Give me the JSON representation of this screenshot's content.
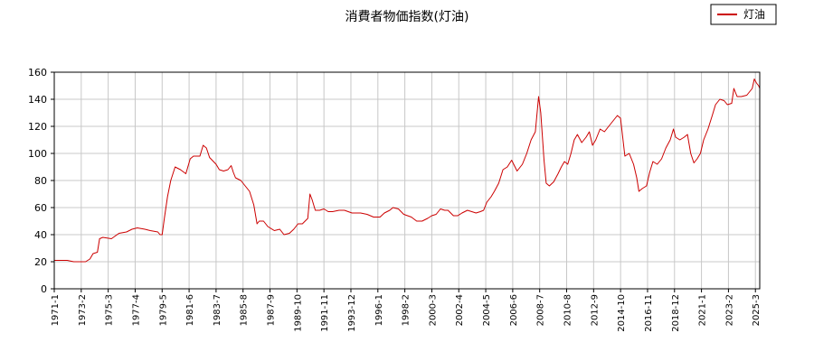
{
  "chart_data": {
    "type": "line",
    "title": "消費者物価指数(灯油)",
    "xlabel": "",
    "ylabel": "",
    "ylim": [
      0,
      160
    ],
    "yticks": [
      0,
      20,
      40,
      60,
      80,
      100,
      120,
      140,
      160
    ],
    "xlim": [
      "1971-01",
      "2025-07"
    ],
    "grid": true,
    "legend_position": "top-right",
    "x_tick_labels": [
      "1971-1",
      "1973-2",
      "1975-3",
      "1977-4",
      "1979-5",
      "1981-6",
      "1983-7",
      "1985-8",
      "1987-9",
      "1989-10",
      "1991-11",
      "1993-12",
      "1996-1",
      "1998-2",
      "2000-3",
      "2002-4",
      "2004-5",
      "2006-6",
      "2008-7",
      "2010-8",
      "2012-9",
      "2014-10",
      "2016-11",
      "2018-12",
      "2021-1",
      "2023-2",
      "2025-3"
    ],
    "series": [
      {
        "name": "灯油",
        "color": "#cc0000",
        "points": [
          [
            "1971-01",
            21
          ],
          [
            "1972-01",
            21
          ],
          [
            "1972-07",
            20
          ],
          [
            "1973-06",
            20
          ],
          [
            "1973-10",
            22
          ],
          [
            "1974-01",
            26
          ],
          [
            "1974-05",
            27
          ],
          [
            "1974-07",
            37
          ],
          [
            "1974-10",
            38
          ],
          [
            "1975-06",
            37
          ],
          [
            "1976-01",
            41
          ],
          [
            "1976-08",
            42
          ],
          [
            "1977-01",
            44
          ],
          [
            "1977-06",
            45
          ],
          [
            "1978-01",
            44
          ],
          [
            "1978-06",
            43
          ],
          [
            "1979-01",
            42
          ],
          [
            "1979-03",
            40
          ],
          [
            "1979-05",
            40
          ],
          [
            "1979-07",
            52
          ],
          [
            "1979-10",
            68
          ],
          [
            "1980-01",
            80
          ],
          [
            "1980-05",
            90
          ],
          [
            "1980-10",
            88
          ],
          [
            "1981-03",
            85
          ],
          [
            "1981-07",
            96
          ],
          [
            "1981-10",
            98
          ],
          [
            "1982-04",
            98
          ],
          [
            "1982-07",
            106
          ],
          [
            "1982-10",
            104
          ],
          [
            "1983-01",
            97
          ],
          [
            "1983-07",
            92
          ],
          [
            "1983-10",
            88
          ],
          [
            "1984-02",
            87
          ],
          [
            "1984-06",
            88
          ],
          [
            "1984-09",
            91
          ],
          [
            "1984-11",
            86
          ],
          [
            "1985-01",
            82
          ],
          [
            "1985-06",
            80
          ],
          [
            "1985-10",
            76
          ],
          [
            "1986-02",
            72
          ],
          [
            "1986-06",
            62
          ],
          [
            "1986-09",
            48
          ],
          [
            "1986-11",
            50
          ],
          [
            "1987-03",
            50
          ],
          [
            "1987-07",
            46
          ],
          [
            "1988-01",
            43
          ],
          [
            "1988-06",
            44
          ],
          [
            "1988-10",
            40
          ],
          [
            "1989-03",
            41
          ],
          [
            "1989-07",
            44
          ],
          [
            "1989-11",
            48
          ],
          [
            "1990-03",
            48
          ],
          [
            "1990-08",
            52
          ],
          [
            "1990-10",
            70
          ],
          [
            "1990-12",
            66
          ],
          [
            "1991-03",
            58
          ],
          [
            "1991-07",
            58
          ],
          [
            "1991-11",
            59
          ],
          [
            "1992-03",
            57
          ],
          [
            "1992-07",
            57
          ],
          [
            "1993-01",
            58
          ],
          [
            "1993-06",
            58
          ],
          [
            "1994-01",
            56
          ],
          [
            "1994-09",
            56
          ],
          [
            "1995-03",
            55
          ],
          [
            "1995-09",
            53
          ],
          [
            "1996-03",
            53
          ],
          [
            "1996-07",
            56
          ],
          [
            "1996-12",
            58
          ],
          [
            "1997-03",
            60
          ],
          [
            "1997-08",
            59
          ],
          [
            "1998-01",
            55
          ],
          [
            "1998-08",
            53
          ],
          [
            "1999-01",
            50
          ],
          [
            "1999-06",
            50
          ],
          [
            "1999-11",
            52
          ],
          [
            "2000-03",
            54
          ],
          [
            "2000-07",
            55
          ],
          [
            "2000-11",
            59
          ],
          [
            "2001-03",
            58
          ],
          [
            "2001-06",
            58
          ],
          [
            "2001-11",
            54
          ],
          [
            "2002-03",
            54
          ],
          [
            "2002-07",
            56
          ],
          [
            "2002-12",
            58
          ],
          [
            "2003-04",
            57
          ],
          [
            "2003-08",
            56
          ],
          [
            "2003-12",
            57
          ],
          [
            "2004-03",
            58
          ],
          [
            "2004-06",
            64
          ],
          [
            "2004-10",
            68
          ],
          [
            "2005-01",
            72
          ],
          [
            "2005-05",
            78
          ],
          [
            "2005-09",
            88
          ],
          [
            "2006-01",
            90
          ],
          [
            "2006-05",
            95
          ],
          [
            "2006-10",
            87
          ],
          [
            "2007-03",
            92
          ],
          [
            "2007-07",
            100
          ],
          [
            "2007-11",
            110
          ],
          [
            "2008-03",
            116
          ],
          [
            "2008-06",
            142
          ],
          [
            "2008-08",
            130
          ],
          [
            "2008-11",
            95
          ],
          [
            "2009-01",
            78
          ],
          [
            "2009-04",
            76
          ],
          [
            "2009-08",
            79
          ],
          [
            "2009-12",
            85
          ],
          [
            "2010-03",
            90
          ],
          [
            "2010-06",
            94
          ],
          [
            "2010-09",
            92
          ],
          [
            "2010-12",
            100
          ],
          [
            "2011-03",
            110
          ],
          [
            "2011-06",
            114
          ],
          [
            "2011-10",
            108
          ],
          [
            "2012-02",
            112
          ],
          [
            "2012-05",
            116
          ],
          [
            "2012-08",
            106
          ],
          [
            "2012-11",
            110
          ],
          [
            "2013-03",
            118
          ],
          [
            "2013-07",
            116
          ],
          [
            "2013-11",
            120
          ],
          [
            "2014-03",
            124
          ],
          [
            "2014-07",
            128
          ],
          [
            "2014-10",
            126
          ],
          [
            "2014-12",
            112
          ],
          [
            "2015-02",
            98
          ],
          [
            "2015-06",
            100
          ],
          [
            "2015-10",
            92
          ],
          [
            "2016-01",
            82
          ],
          [
            "2016-03",
            72
          ],
          [
            "2016-06",
            74
          ],
          [
            "2016-10",
            76
          ],
          [
            "2017-01",
            86
          ],
          [
            "2017-04",
            94
          ],
          [
            "2017-08",
            92
          ],
          [
            "2017-12",
            96
          ],
          [
            "2018-04",
            104
          ],
          [
            "2018-08",
            110
          ],
          [
            "2018-11",
            118
          ],
          [
            "2019-01",
            112
          ],
          [
            "2019-05",
            110
          ],
          [
            "2019-09",
            112
          ],
          [
            "2019-12",
            114
          ],
          [
            "2020-03",
            100
          ],
          [
            "2020-06",
            93
          ],
          [
            "2020-09",
            96
          ],
          [
            "2020-12",
            100
          ],
          [
            "2021-03",
            110
          ],
          [
            "2021-07",
            118
          ],
          [
            "2021-11",
            128
          ],
          [
            "2022-02",
            136
          ],
          [
            "2022-06",
            140
          ],
          [
            "2022-10",
            139
          ],
          [
            "2023-01",
            136
          ],
          [
            "2023-05",
            137
          ],
          [
            "2023-07",
            148
          ],
          [
            "2023-10",
            142
          ],
          [
            "2024-02",
            142
          ],
          [
            "2024-07",
            143
          ],
          [
            "2024-12",
            148
          ],
          [
            "2025-02",
            155
          ],
          [
            "2025-04",
            152
          ],
          [
            "2025-06",
            150
          ],
          [
            "2025-07",
            148
          ]
        ]
      }
    ]
  }
}
